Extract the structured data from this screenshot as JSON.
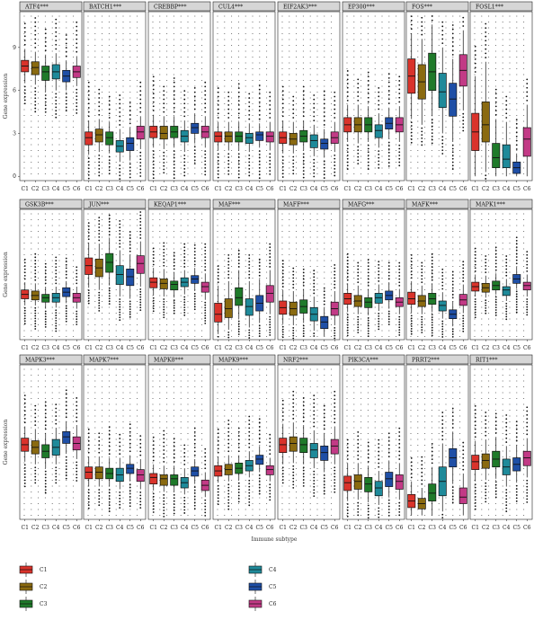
{
  "chart_data": {
    "type": "boxplot",
    "title": "",
    "xlabel": "Immune subtype",
    "ylabel": "Gene expression",
    "categories": [
      "C1",
      "C2",
      "C3",
      "C4",
      "C5",
      "C6"
    ],
    "colors": [
      "#d9332b",
      "#8a6a10",
      "#1f7a2a",
      "#1f8a9a",
      "#1f4fa6",
      "#c23a86"
    ],
    "grid": "dotted",
    "row_yticks": [
      [
        "0",
        "3",
        "6",
        "9"
      ],
      [],
      []
    ],
    "row_yrange": [
      [
        -0.3,
        11.5
      ],
      [
        -0.3,
        11.5
      ],
      [
        -0.3,
        11.5
      ]
    ],
    "panels": [
      {
        "gene": "ATF4",
        "sig": "***",
        "row": 0,
        "boxes": [
          [
            6.5,
            7.3,
            7.7,
            8.1,
            8.9
          ],
          [
            6.4,
            7.1,
            7.6,
            8.0,
            8.7
          ],
          [
            5.9,
            6.7,
            7.3,
            7.7,
            8.5
          ],
          [
            6.0,
            6.8,
            7.3,
            7.8,
            8.6
          ],
          [
            6.0,
            6.6,
            7.0,
            7.4,
            8.1
          ],
          [
            6.3,
            6.9,
            7.3,
            7.7,
            8.4
          ]
        ]
      },
      {
        "gene": "BATCH1",
        "sig": "***",
        "row": 0,
        "boxes": [
          [
            1.5,
            2.2,
            2.7,
            3.1,
            3.9
          ],
          [
            1.7,
            2.4,
            2.9,
            3.3,
            4.0
          ],
          [
            1.6,
            2.2,
            2.7,
            3.1,
            3.8
          ],
          [
            1.0,
            1.7,
            2.1,
            2.5,
            3.3
          ],
          [
            1.1,
            1.8,
            2.3,
            2.7,
            3.4
          ],
          [
            1.9,
            2.6,
            3.1,
            3.5,
            4.2
          ]
        ]
      },
      {
        "gene": "CREBBP",
        "sig": "***",
        "row": 0,
        "boxes": [
          [
            2.0,
            2.7,
            3.1,
            3.5,
            4.3
          ],
          [
            1.9,
            2.6,
            3.0,
            3.5,
            4.2
          ],
          [
            2.0,
            2.7,
            3.1,
            3.5,
            4.2
          ],
          [
            1.7,
            2.4,
            2.8,
            3.2,
            3.9
          ],
          [
            2.3,
            3.0,
            3.4,
            3.7,
            4.4
          ],
          [
            2.0,
            2.7,
            3.1,
            3.5,
            4.2
          ]
        ]
      },
      {
        "gene": "CUL4",
        "sig": "***",
        "row": 0,
        "boxes": [
          [
            1.8,
            2.4,
            2.8,
            3.1,
            3.8
          ],
          [
            1.8,
            2.4,
            2.8,
            3.1,
            3.8
          ],
          [
            1.8,
            2.4,
            2.8,
            3.1,
            3.8
          ],
          [
            1.7,
            2.3,
            2.7,
            3.0,
            3.7
          ],
          [
            2.0,
            2.5,
            2.9,
            3.1,
            3.7
          ],
          [
            1.8,
            2.4,
            2.8,
            3.1,
            3.8
          ]
        ]
      },
      {
        "gene": "EIF2AK3",
        "sig": "***",
        "row": 0,
        "boxes": [
          [
            1.6,
            2.3,
            2.7,
            3.1,
            3.9
          ],
          [
            1.6,
            2.2,
            2.6,
            3.0,
            3.8
          ],
          [
            1.8,
            2.4,
            2.8,
            3.2,
            3.9
          ],
          [
            1.4,
            2.0,
            2.5,
            2.9,
            3.6
          ],
          [
            1.3,
            1.9,
            2.3,
            2.6,
            3.3
          ],
          [
            1.7,
            2.3,
            2.7,
            3.1,
            3.8
          ]
        ]
      },
      {
        "gene": "EP300",
        "sig": "***",
        "row": 0,
        "boxes": [
          [
            2.4,
            3.1,
            3.6,
            4.1,
            5.0
          ],
          [
            2.3,
            3.1,
            3.6,
            4.1,
            5.0
          ],
          [
            2.4,
            3.1,
            3.6,
            4.1,
            4.9
          ],
          [
            2.0,
            2.7,
            3.2,
            3.6,
            4.4
          ],
          [
            2.6,
            3.3,
            3.7,
            4.1,
            4.8
          ],
          [
            2.4,
            3.1,
            3.6,
            4.1,
            4.9
          ]
        ]
      },
      {
        "gene": "FOS",
        "sig": "***",
        "row": 0,
        "boxes": [
          [
            4.0,
            5.8,
            7.0,
            8.2,
            10.0
          ],
          [
            3.6,
            5.4,
            6.6,
            7.8,
            9.6
          ],
          [
            4.2,
            6.0,
            7.3,
            8.6,
            10.6
          ],
          [
            3.0,
            4.8,
            5.9,
            7.2,
            9.0
          ],
          [
            2.4,
            4.2,
            5.4,
            6.5,
            8.2
          ],
          [
            4.6,
            6.3,
            7.4,
            8.5,
            10.2
          ]
        ]
      },
      {
        "gene": "FOSL1",
        "sig": "***",
        "row": 0,
        "boxes": [
          [
            0.0,
            1.8,
            3.1,
            4.4,
            7.0
          ],
          [
            0.3,
            2.4,
            3.6,
            5.2,
            8.0
          ],
          [
            0.0,
            0.6,
            1.3,
            2.3,
            4.0
          ],
          [
            0.0,
            0.6,
            1.2,
            2.2,
            3.8
          ],
          [
            0.0,
            0.2,
            0.6,
            1.0,
            1.6
          ],
          [
            0.0,
            1.4,
            2.6,
            3.4,
            5.0
          ]
        ]
      },
      {
        "gene": "GSK3B",
        "sig": "***",
        "row": 1,
        "boxes": [
          [
            2.8,
            3.4,
            3.8,
            4.2,
            4.9
          ],
          [
            2.8,
            3.3,
            3.7,
            4.1,
            4.8
          ],
          [
            2.5,
            3.1,
            3.5,
            3.8,
            4.5
          ],
          [
            2.6,
            3.1,
            3.5,
            3.9,
            4.5
          ],
          [
            3.0,
            3.6,
            4.0,
            4.4,
            5.0
          ],
          [
            2.5,
            3.1,
            3.5,
            3.9,
            4.5
          ]
        ]
      },
      {
        "gene": "JUN",
        "sig": "***",
        "row": 1,
        "boxes": [
          [
            4.4,
            5.6,
            6.4,
            7.1,
            8.5
          ],
          [
            4.2,
            5.4,
            6.2,
            7.0,
            8.4
          ],
          [
            4.6,
            5.8,
            6.7,
            7.5,
            8.9
          ],
          [
            3.6,
            4.7,
            5.6,
            6.4,
            7.8
          ],
          [
            3.4,
            4.6,
            5.4,
            6.1,
            7.4
          ],
          [
            4.5,
            5.7,
            6.6,
            7.3,
            8.6
          ]
        ]
      },
      {
        "gene": "KEQAP1",
        "sig": "***",
        "row": 1,
        "boxes": [
          [
            3.7,
            4.4,
            4.9,
            5.3,
            6.2
          ],
          [
            3.6,
            4.3,
            4.8,
            5.2,
            6.1
          ],
          [
            3.5,
            4.2,
            4.7,
            5.0,
            5.8
          ],
          [
            3.8,
            4.5,
            4.9,
            5.3,
            6.0
          ],
          [
            4.1,
            4.8,
            5.2,
            5.5,
            6.2
          ],
          [
            3.3,
            4.0,
            4.5,
            4.9,
            5.7
          ]
        ]
      },
      {
        "gene": "MAF",
        "sig": "***",
        "row": 1,
        "boxes": [
          [
            0.2,
            1.3,
            2.0,
            3.0,
            4.6
          ],
          [
            0.6,
            1.7,
            2.5,
            3.4,
            5.0
          ],
          [
            1.6,
            2.8,
            3.5,
            4.4,
            6.0
          ],
          [
            0.8,
            1.9,
            2.7,
            3.4,
            5.0
          ],
          [
            1.2,
            2.3,
            3.0,
            3.7,
            5.2
          ],
          [
            2.0,
            3.1,
            3.9,
            4.6,
            6.0
          ]
        ]
      },
      {
        "gene": "MAFF",
        "sig": "***",
        "row": 1,
        "boxes": [
          [
            1.1,
            2.0,
            2.6,
            3.2,
            4.2
          ],
          [
            1.0,
            1.9,
            2.5,
            3.1,
            4.1
          ],
          [
            1.2,
            2.1,
            2.7,
            3.3,
            4.3
          ],
          [
            0.5,
            1.4,
            2.0,
            2.6,
            3.6
          ],
          [
            0.0,
            0.7,
            1.3,
            1.8,
            2.6
          ],
          [
            1.0,
            1.9,
            2.5,
            3.1,
            4.1
          ]
        ]
      },
      {
        "gene": "MAFG",
        "sig": "***",
        "row": 1,
        "boxes": [
          [
            2.2,
            2.9,
            3.4,
            3.9,
            4.8
          ],
          [
            2.0,
            2.7,
            3.2,
            3.7,
            4.6
          ],
          [
            1.9,
            2.6,
            3.1,
            3.5,
            4.3
          ],
          [
            2.3,
            3.0,
            3.5,
            3.9,
            4.7
          ],
          [
            2.5,
            3.3,
            3.7,
            4.1,
            4.9
          ],
          [
            2.0,
            2.7,
            3.1,
            3.5,
            4.3
          ]
        ]
      },
      {
        "gene": "MAFK",
        "sig": "***",
        "row": 1,
        "boxes": [
          [
            2.1,
            2.9,
            3.4,
            4.0,
            5.0
          ],
          [
            2.0,
            2.7,
            3.2,
            3.7,
            4.6
          ],
          [
            2.2,
            2.9,
            3.4,
            3.9,
            4.8
          ],
          [
            1.6,
            2.3,
            2.8,
            3.2,
            4.0
          ],
          [
            0.9,
            1.6,
            2.0,
            2.4,
            3.2
          ],
          [
            2.1,
            2.8,
            3.3,
            3.8,
            4.7
          ]
        ]
      },
      {
        "gene": "MAPK1",
        "sig": "***",
        "row": 1,
        "boxes": [
          [
            3.6,
            4.1,
            4.5,
            4.9,
            5.6
          ],
          [
            3.5,
            4.0,
            4.4,
            4.8,
            5.5
          ],
          [
            3.8,
            4.2,
            4.6,
            5.0,
            5.7
          ],
          [
            3.2,
            3.7,
            4.2,
            4.5,
            5.2
          ],
          [
            4.3,
            4.8,
            5.2,
            5.6,
            6.3
          ],
          [
            3.6,
            4.2,
            4.6,
            4.9,
            5.6
          ]
        ]
      },
      {
        "gene": "MAPK3",
        "sig": "***",
        "row": 2,
        "boxes": [
          [
            4.1,
            4.9,
            5.4,
            5.9,
            6.8
          ],
          [
            3.9,
            4.7,
            5.2,
            5.7,
            6.6
          ],
          [
            3.6,
            4.4,
            4.9,
            5.4,
            6.3
          ],
          [
            3.9,
            4.6,
            5.2,
            5.8,
            6.7
          ],
          [
            4.7,
            5.5,
            6.0,
            6.4,
            7.2
          ],
          [
            4.3,
            5.0,
            5.5,
            6.0,
            6.9
          ]
        ]
      },
      {
        "gene": "MAPK7",
        "sig": "***",
        "row": 2,
        "boxes": [
          [
            2.2,
            2.8,
            3.3,
            3.7,
            4.5
          ],
          [
            2.2,
            2.8,
            3.3,
            3.7,
            4.5
          ],
          [
            2.2,
            2.8,
            3.2,
            3.6,
            4.4
          ],
          [
            2.0,
            2.6,
            3.1,
            3.6,
            4.4
          ],
          [
            2.6,
            3.2,
            3.6,
            3.9,
            4.6
          ],
          [
            2.0,
            2.6,
            3.1,
            3.5,
            4.3
          ]
        ]
      },
      {
        "gene": "MAPK8",
        "sig": "***",
        "row": 2,
        "boxes": [
          [
            1.9,
            2.4,
            2.9,
            3.2,
            3.9
          ],
          [
            1.8,
            2.3,
            2.8,
            3.1,
            3.8
          ],
          [
            1.8,
            2.3,
            2.8,
            3.1,
            3.8
          ],
          [
            1.6,
            2.1,
            2.5,
            2.9,
            3.6
          ],
          [
            2.4,
            3.0,
            3.4,
            3.7,
            4.3
          ],
          [
            1.4,
            1.9,
            2.3,
            2.7,
            3.3
          ]
        ]
      },
      {
        "gene": "MAPK9",
        "sig": "***",
        "row": 2,
        "boxes": [
          [
            2.5,
            3.0,
            3.4,
            3.8,
            4.5
          ],
          [
            2.6,
            3.1,
            3.5,
            3.9,
            4.6
          ],
          [
            2.7,
            3.2,
            3.6,
            4.0,
            4.6
          ],
          [
            2.9,
            3.4,
            3.8,
            4.2,
            4.9
          ],
          [
            3.3,
            3.9,
            4.3,
            4.6,
            5.3
          ],
          [
            2.6,
            3.1,
            3.5,
            3.8,
            4.4
          ]
        ]
      },
      {
        "gene": "NRF2",
        "sig": "***",
        "row": 2,
        "boxes": [
          [
            3.9,
            4.8,
            5.4,
            5.9,
            7.0
          ],
          [
            4.0,
            4.9,
            5.5,
            6.0,
            7.1
          ],
          [
            3.9,
            4.8,
            5.4,
            5.9,
            6.9
          ],
          [
            3.6,
            4.4,
            5.0,
            5.5,
            6.5
          ],
          [
            3.3,
            4.2,
            4.8,
            5.3,
            6.3
          ],
          [
            3.9,
            4.7,
            5.3,
            5.8,
            6.8
          ]
        ]
      },
      {
        "gene": "PIK3CA",
        "sig": "***",
        "row": 2,
        "boxes": [
          [
            1.1,
            1.9,
            2.5,
            3.0,
            4.0
          ],
          [
            1.2,
            2.0,
            2.6,
            3.1,
            4.0
          ],
          [
            1.0,
            1.8,
            2.4,
            2.9,
            3.8
          ],
          [
            0.8,
            1.5,
            2.1,
            2.6,
            3.4
          ],
          [
            1.4,
            2.2,
            2.8,
            3.3,
            4.2
          ],
          [
            1.2,
            2.0,
            2.6,
            3.1,
            4.0
          ]
        ]
      },
      {
        "gene": "PRRT2",
        "sig": "***",
        "row": 2,
        "boxes": [
          [
            0.0,
            0.6,
            1.1,
            1.6,
            2.6
          ],
          [
            0.0,
            0.5,
            0.9,
            1.3,
            2.1
          ],
          [
            0.0,
            1.1,
            1.7,
            2.4,
            3.7
          ],
          [
            0.3,
            1.5,
            2.6,
            3.7,
            5.5
          ],
          [
            2.4,
            3.7,
            4.4,
            5.1,
            6.4
          ],
          [
            0.0,
            0.9,
            1.4,
            2.1,
            3.2
          ]
        ]
      },
      {
        "gene": "RIT1",
        "sig": "***",
        "row": 2,
        "boxes": [
          [
            2.6,
            3.5,
            4.1,
            4.6,
            5.7
          ],
          [
            2.7,
            3.6,
            4.2,
            4.7,
            5.8
          ],
          [
            2.8,
            3.7,
            4.3,
            4.9,
            6.0
          ],
          [
            2.2,
            3.1,
            3.7,
            4.3,
            5.3
          ],
          [
            2.5,
            3.4,
            3.9,
            4.4,
            5.4
          ],
          [
            2.9,
            3.8,
            4.4,
            4.9,
            5.9
          ]
        ]
      }
    ],
    "legend": {
      "placement": "bottom-left",
      "entries": [
        "C1",
        "C2",
        "C3",
        "C4",
        "C5",
        "C6"
      ]
    }
  }
}
